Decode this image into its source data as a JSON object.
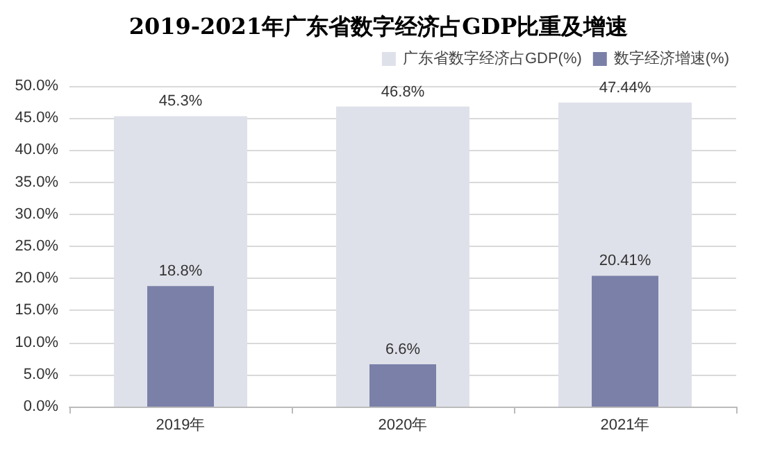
{
  "chart_data": {
    "type": "bar",
    "title": "2019-2021年广东省数字经济占GDP比重及增速",
    "categories": [
      "2019年",
      "2020年",
      "2021年"
    ],
    "series": [
      {
        "name": "广东省数字经济占GDP(%)",
        "color": "#dfe1ea",
        "values": [
          45.3,
          46.8,
          47.44
        ],
        "value_labels": [
          "45.3%",
          "46.8%",
          "47.44%"
        ]
      },
      {
        "name": "数字经济增速(%)",
        "color": "#7b80a8",
        "values": [
          18.8,
          6.6,
          20.41
        ],
        "value_labels": [
          "18.8%",
          "6.6%",
          "20.41%"
        ]
      }
    ],
    "ylim": [
      0,
      50
    ],
    "yticks": [
      {
        "value": 0,
        "label": "0.0%"
      },
      {
        "value": 5,
        "label": "5.0%"
      },
      {
        "value": 10,
        "label": "10.0%"
      },
      {
        "value": 15,
        "label": "15.0%"
      },
      {
        "value": 20,
        "label": "20.0%"
      },
      {
        "value": 25,
        "label": "25.0%"
      },
      {
        "value": 30,
        "label": "30.0%"
      },
      {
        "value": 35,
        "label": "35.0%"
      },
      {
        "value": 40,
        "label": "40.0%"
      },
      {
        "value": 45,
        "label": "45.0%"
      },
      {
        "value": 50,
        "label": "50.0%"
      }
    ],
    "grid": "y",
    "legend": "top right"
  }
}
